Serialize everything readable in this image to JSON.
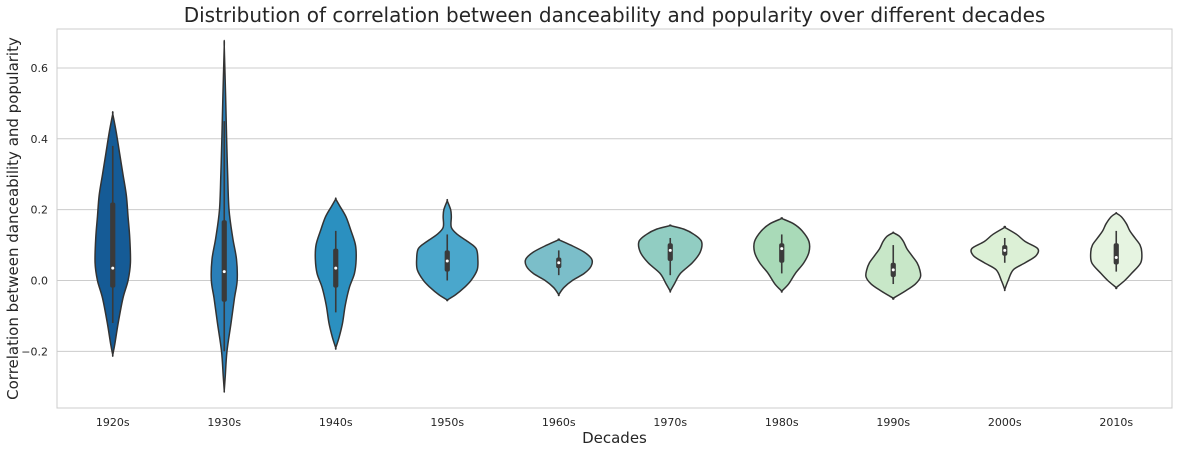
{
  "chart_data": {
    "type": "violin",
    "title": "Distribution of correlation between danceability and popularity over different decades",
    "xlabel": "Decades",
    "ylabel": "Correlation between danceability and popularity",
    "ylim": [
      -0.36,
      0.71
    ],
    "yticks": [
      -0.2,
      0.0,
      0.2,
      0.4,
      0.6
    ],
    "ytick_labels": [
      "−0.2",
      "0.0",
      "0.2",
      "0.4",
      "0.6"
    ],
    "grid": true,
    "categories": [
      "1920s",
      "1930s",
      "1940s",
      "1950s",
      "1960s",
      "1970s",
      "1980s",
      "1990s",
      "2000s",
      "2010s"
    ],
    "violins": [
      {
        "category": "1920s",
        "color": "#155b96",
        "min": -0.21,
        "max": 0.47,
        "q1": -0.02,
        "median": 0.035,
        "q3": 0.22,
        "whisker_low": -0.12,
        "whisker_high": 0.38,
        "profile": [
          [
            -0.21,
            0.0
          ],
          [
            -0.18,
            0.06
          ],
          [
            -0.12,
            0.16
          ],
          [
            -0.05,
            0.3
          ],
          [
            0.0,
            0.45
          ],
          [
            0.05,
            0.52
          ],
          [
            0.12,
            0.5
          ],
          [
            0.18,
            0.45
          ],
          [
            0.24,
            0.4
          ],
          [
            0.3,
            0.3
          ],
          [
            0.36,
            0.2
          ],
          [
            0.42,
            0.1
          ],
          [
            0.47,
            0.0
          ]
        ]
      },
      {
        "category": "1930s",
        "color": "#2a7fb8",
        "min": -0.31,
        "max": 0.66,
        "q1": -0.06,
        "median": 0.025,
        "q3": 0.17,
        "whisker_low": -0.2,
        "whisker_high": 0.45,
        "profile": [
          [
            -0.31,
            0.0
          ],
          [
            -0.27,
            0.03
          ],
          [
            -0.2,
            0.08
          ],
          [
            -0.12,
            0.2
          ],
          [
            -0.05,
            0.3
          ],
          [
            0.0,
            0.38
          ],
          [
            0.06,
            0.36
          ],
          [
            0.12,
            0.25
          ],
          [
            0.2,
            0.14
          ],
          [
            0.3,
            0.1
          ],
          [
            0.4,
            0.07
          ],
          [
            0.52,
            0.04
          ],
          [
            0.66,
            0.0
          ]
        ]
      },
      {
        "category": "1940s",
        "color": "#2b90c0",
        "min": -0.19,
        "max": 0.23,
        "q1": -0.02,
        "median": 0.035,
        "q3": 0.09,
        "whisker_low": -0.09,
        "whisker_high": 0.14,
        "profile": [
          [
            -0.19,
            0.0
          ],
          [
            -0.16,
            0.1
          ],
          [
            -0.12,
            0.2
          ],
          [
            -0.07,
            0.28
          ],
          [
            -0.02,
            0.4
          ],
          [
            0.02,
            0.55
          ],
          [
            0.06,
            0.6
          ],
          [
            0.1,
            0.58
          ],
          [
            0.14,
            0.45
          ],
          [
            0.18,
            0.3
          ],
          [
            0.21,
            0.12
          ],
          [
            0.23,
            0.0
          ]
        ]
      },
      {
        "category": "1950s",
        "color": "#4aa7cc",
        "min": -0.055,
        "max": 0.225,
        "q1": 0.025,
        "median": 0.055,
        "q3": 0.085,
        "whisker_low": 0.0,
        "whisker_high": 0.13,
        "profile": [
          [
            -0.055,
            0.0
          ],
          [
            -0.04,
            0.25
          ],
          [
            -0.02,
            0.5
          ],
          [
            0.0,
            0.7
          ],
          [
            0.03,
            0.88
          ],
          [
            0.06,
            0.9
          ],
          [
            0.09,
            0.85
          ],
          [
            0.11,
            0.6
          ],
          [
            0.13,
            0.3
          ],
          [
            0.15,
            0.12
          ],
          [
            0.18,
            0.12
          ],
          [
            0.2,
            0.1
          ],
          [
            0.225,
            0.0
          ]
        ]
      },
      {
        "category": "1960s",
        "color": "#7bbec9",
        "min": -0.04,
        "max": 0.115,
        "q1": 0.035,
        "median": 0.05,
        "q3": 0.065,
        "whisker_low": 0.015,
        "whisker_high": 0.085,
        "profile": [
          [
            -0.04,
            0.0
          ],
          [
            -0.02,
            0.15
          ],
          [
            0.0,
            0.4
          ],
          [
            0.02,
            0.75
          ],
          [
            0.04,
            0.95
          ],
          [
            0.06,
            0.97
          ],
          [
            0.08,
            0.75
          ],
          [
            0.1,
            0.35
          ],
          [
            0.115,
            0.0
          ]
        ]
      },
      {
        "category": "1970s",
        "color": "#91cdc2",
        "min": -0.03,
        "max": 0.155,
        "q1": 0.055,
        "median": 0.085,
        "q3": 0.105,
        "whisker_low": 0.015,
        "whisker_high": 0.12,
        "profile": [
          [
            -0.03,
            0.0
          ],
          [
            -0.01,
            0.12
          ],
          [
            0.02,
            0.3
          ],
          [
            0.05,
            0.65
          ],
          [
            0.08,
            0.88
          ],
          [
            0.11,
            0.92
          ],
          [
            0.13,
            0.7
          ],
          [
            0.145,
            0.4
          ],
          [
            0.155,
            0.0
          ]
        ]
      },
      {
        "category": "1980s",
        "color": "#a9dab8",
        "min": -0.03,
        "max": 0.175,
        "q1": 0.05,
        "median": 0.09,
        "q3": 0.105,
        "whisker_low": 0.02,
        "whisker_high": 0.13,
        "profile": [
          [
            -0.03,
            0.0
          ],
          [
            -0.01,
            0.2
          ],
          [
            0.02,
            0.4
          ],
          [
            0.05,
            0.65
          ],
          [
            0.08,
            0.8
          ],
          [
            0.11,
            0.8
          ],
          [
            0.14,
            0.6
          ],
          [
            0.16,
            0.35
          ],
          [
            0.175,
            0.0
          ]
        ]
      },
      {
        "category": "1990s",
        "color": "#c8e7c8",
        "min": -0.05,
        "max": 0.135,
        "q1": 0.01,
        "median": 0.03,
        "q3": 0.05,
        "whisker_low": -0.01,
        "whisker_high": 0.1,
        "profile": [
          [
            -0.05,
            0.0
          ],
          [
            -0.03,
            0.35
          ],
          [
            -0.01,
            0.65
          ],
          [
            0.01,
            0.8
          ],
          [
            0.03,
            0.78
          ],
          [
            0.05,
            0.7
          ],
          [
            0.07,
            0.55
          ],
          [
            0.09,
            0.4
          ],
          [
            0.11,
            0.3
          ],
          [
            0.125,
            0.18
          ],
          [
            0.135,
            0.0
          ]
        ]
      },
      {
        "category": "2000s",
        "color": "#dcf0d6",
        "min": -0.025,
        "max": 0.15,
        "q1": 0.07,
        "median": 0.085,
        "q3": 0.1,
        "whisker_low": 0.05,
        "whisker_high": 0.12,
        "profile": [
          [
            -0.025,
            0.0
          ],
          [
            0.0,
            0.1
          ],
          [
            0.03,
            0.25
          ],
          [
            0.05,
            0.6
          ],
          [
            0.07,
            0.92
          ],
          [
            0.09,
            0.97
          ],
          [
            0.11,
            0.6
          ],
          [
            0.13,
            0.35
          ],
          [
            0.15,
            0.0
          ]
        ]
      },
      {
        "category": "2010s",
        "color": "#e6f4e1",
        "min": -0.02,
        "max": 0.19,
        "q1": 0.045,
        "median": 0.065,
        "q3": 0.105,
        "whisker_low": 0.025,
        "whisker_high": 0.14,
        "profile": [
          [
            -0.02,
            0.0
          ],
          [
            0.0,
            0.25
          ],
          [
            0.02,
            0.45
          ],
          [
            0.05,
            0.72
          ],
          [
            0.08,
            0.75
          ],
          [
            0.1,
            0.7
          ],
          [
            0.12,
            0.55
          ],
          [
            0.14,
            0.4
          ],
          [
            0.16,
            0.3
          ],
          [
            0.18,
            0.15
          ],
          [
            0.19,
            0.0
          ]
        ]
      }
    ]
  }
}
